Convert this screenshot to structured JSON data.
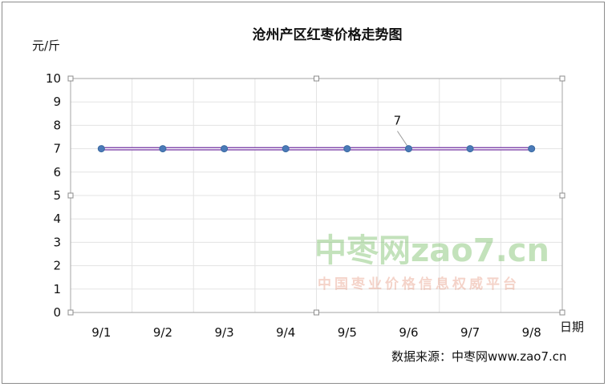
{
  "chart_data": {
    "type": "line",
    "title": "沧州产区红枣价格走势图",
    "ylabel": "元/斤",
    "xlabel": "日期",
    "categories": [
      "9/1",
      "9/2",
      "9/3",
      "9/4",
      "9/5",
      "9/6",
      "9/7",
      "9/8"
    ],
    "series": [
      {
        "values": [
          7,
          7,
          7,
          7,
          7,
          7,
          7,
          7
        ]
      }
    ],
    "ylim": [
      0,
      10
    ],
    "yticks": [
      0,
      1,
      2,
      3,
      4,
      5,
      6,
      7,
      8,
      9,
      10
    ],
    "grid": true,
    "data_label": {
      "category": "9/6",
      "text": "7"
    },
    "colors": {
      "line": "#7030a0",
      "line_inner": "#5b6fd6",
      "marker": "#4a7ab8",
      "grid": "#e3e3e3"
    }
  },
  "source_text": "数据来源：中枣网www.zao7.cn",
  "watermark": {
    "brand": "中枣网zao7.cn",
    "slogan": "中国枣业价格信息权威平台"
  }
}
